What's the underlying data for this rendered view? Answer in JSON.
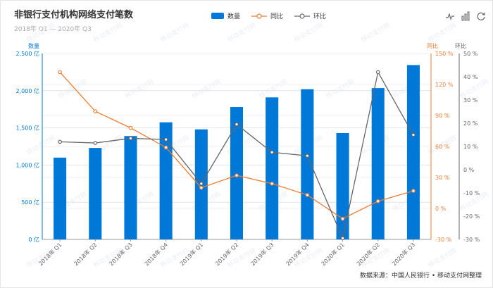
{
  "page": {
    "title": "非银行支付机构网络支付笔数",
    "subtitle": "2018年 Q1 — 2020年 Q3",
    "source": "数据来源：中国人民银行 • 移动支付网整理",
    "watermark": "移动支付网"
  },
  "legend": {
    "qty": "数量",
    "yoy": "同比",
    "qoq": "环比"
  },
  "toolbar": [
    "line-chart-icon",
    "bar-chart-icon",
    "refresh-icon"
  ],
  "chart_data": {
    "type": "bar+line",
    "categories": [
      "2018年 Q1",
      "2018年 Q2",
      "2018年 Q3",
      "2018年 Q4",
      "2019年 Q1",
      "2019年 Q2",
      "2019年 Q3",
      "2019年 Q4",
      "2020年 Q1",
      "2020年 Q2",
      "2020年 Q3"
    ],
    "series": [
      {
        "name": "数量",
        "type": "bar",
        "axis": "left",
        "color": "#0078d7",
        "values": [
          1100,
          1230,
          1390,
          1575,
          1480,
          1780,
          1910,
          2020,
          1430,
          2035,
          2345
        ]
      },
      {
        "name": "同比",
        "type": "line",
        "axis": "right1",
        "color": "#ed7d31",
        "values": [
          132,
          94,
          78,
          59,
          20,
          32,
          24,
          13,
          -10,
          7,
          17
        ]
      },
      {
        "name": "环比",
        "type": "line",
        "axis": "right2",
        "color": "#666666",
        "values": [
          12,
          11.5,
          13.5,
          13,
          -6,
          19.5,
          7.5,
          6,
          -29.5,
          42,
          15
        ]
      }
    ],
    "axes": {
      "left": {
        "label": "数量",
        "min": 0,
        "max": 2500,
        "step": 500,
        "suffix": " 亿",
        "color": "#0078d7"
      },
      "right1": {
        "label": "同比",
        "min": -30,
        "max": 150,
        "step": 30,
        "suffix": " %",
        "color": "#ed7d31"
      },
      "right2": {
        "label": "环比",
        "min": -30,
        "max": 50,
        "step": 10,
        "suffix": " %",
        "color": "#666666"
      }
    },
    "grid": true
  }
}
